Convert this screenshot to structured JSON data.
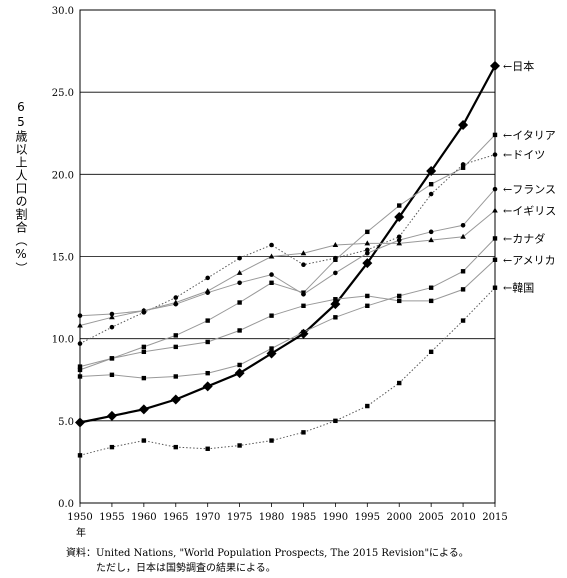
{
  "chart_data": {
    "type": "line",
    "ylabel": "65歳以上人口の割合（%）",
    "x_suffix": "年",
    "x": [
      1950,
      1955,
      1960,
      1965,
      1970,
      1975,
      1980,
      1985,
      1990,
      1995,
      2000,
      2005,
      2010,
      2015
    ],
    "ylim": [
      0,
      30
    ],
    "yticks": [
      "0.0",
      "5.0",
      "10.0",
      "15.0",
      "20.0",
      "25.0",
      "30.0"
    ],
    "grid": true,
    "series": [
      {
        "name": "←日本",
        "marker": "diamond",
        "style": "solid-bold",
        "color": "#000000",
        "values": [
          4.9,
          5.3,
          5.7,
          6.3,
          7.1,
          7.9,
          9.1,
          10.3,
          12.1,
          14.6,
          17.4,
          20.2,
          23.0,
          26.6
        ]
      },
      {
        "name": "←イタリア",
        "marker": "square",
        "style": "solid",
        "color": "#999999",
        "values": [
          8.1,
          8.8,
          9.5,
          10.2,
          11.1,
          12.2,
          13.4,
          12.8,
          14.8,
          16.5,
          18.1,
          19.4,
          20.4,
          22.4
        ]
      },
      {
        "name": "←ドイツ",
        "marker": "circle",
        "style": "dotted",
        "color": "#555555",
        "values": [
          9.7,
          10.7,
          11.6,
          12.5,
          13.7,
          14.9,
          15.7,
          14.5,
          14.9,
          15.4,
          16.2,
          18.8,
          20.6,
          21.2
        ]
      },
      {
        "name": "←フランス",
        "marker": "circle",
        "style": "solid",
        "color": "#999999",
        "values": [
          11.4,
          11.5,
          11.7,
          12.1,
          12.8,
          13.4,
          13.9,
          12.7,
          14.0,
          15.2,
          16.0,
          16.5,
          16.9,
          19.1
        ]
      },
      {
        "name": "←イギリス",
        "marker": "triangle",
        "style": "solid",
        "color": "#999999",
        "values": [
          10.8,
          11.3,
          11.7,
          12.2,
          12.9,
          14.0,
          15.0,
          15.2,
          15.7,
          15.8,
          15.8,
          16.0,
          16.2,
          17.8
        ]
      },
      {
        "name": "←カナダ",
        "marker": "square",
        "style": "solid",
        "color": "#999999",
        "values": [
          7.7,
          7.8,
          7.6,
          7.7,
          7.9,
          8.4,
          9.4,
          10.4,
          11.3,
          12.0,
          12.6,
          13.1,
          14.1,
          16.1
        ]
      },
      {
        "name": "←アメリカ",
        "marker": "square",
        "style": "solid",
        "color": "#999999",
        "values": [
          8.3,
          8.8,
          9.2,
          9.5,
          9.8,
          10.5,
          11.4,
          12.0,
          12.4,
          12.6,
          12.3,
          12.3,
          13.0,
          14.8
        ]
      },
      {
        "name": "←韓国",
        "marker": "square",
        "style": "dotted",
        "color": "#555555",
        "values": [
          2.9,
          3.4,
          3.8,
          3.4,
          3.3,
          3.5,
          3.8,
          4.3,
          5.0,
          5.9,
          7.3,
          9.2,
          11.1,
          13.1
        ]
      }
    ]
  },
  "source": {
    "line1": "資料：United Nations, \"World Population Prospects, The 2015 Revision\"による。",
    "line2": "ただし，日本は国勢調査の結果による。"
  }
}
